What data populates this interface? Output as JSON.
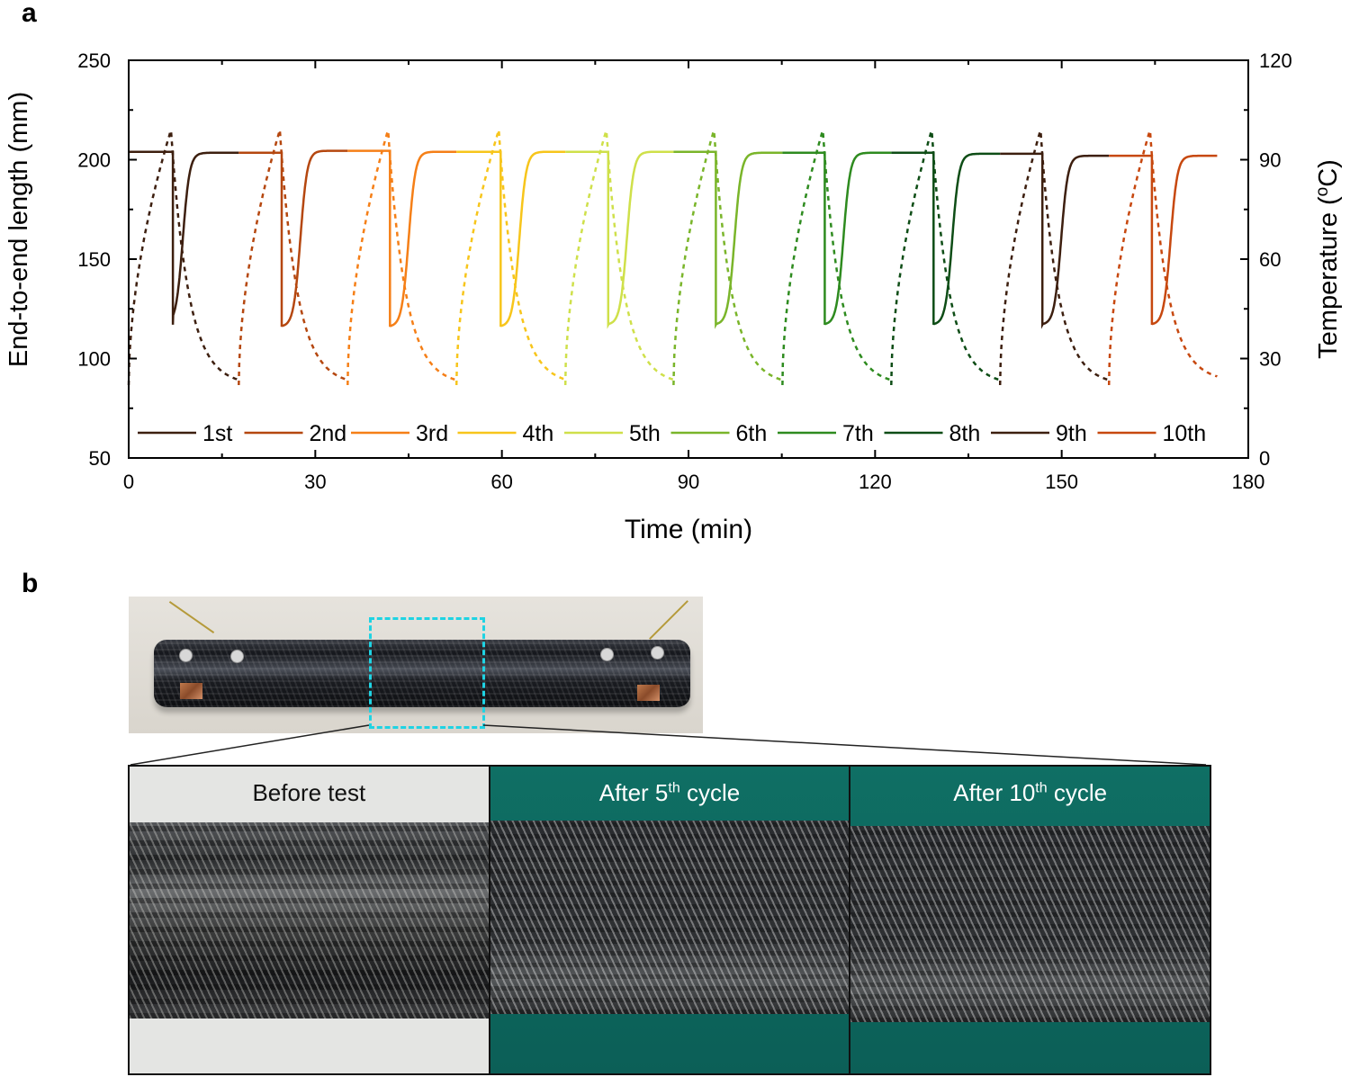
{
  "panel_a_letter": "a",
  "panel_b_letter": "b",
  "chart_data": {
    "type": "line",
    "xlabel": "Time (min)",
    "ylabel": "End-to-end length (mm)",
    "y2label": {
      "prefix": "Temperature (",
      "sup": "o",
      "suffix": "C)"
    },
    "xlim": [
      0,
      180
    ],
    "ylim": [
      50,
      250
    ],
    "y2lim": [
      0,
      120
    ],
    "xticks": [
      "0",
      "30",
      "60",
      "90",
      "120",
      "150",
      "180"
    ],
    "yticks": [
      "50",
      "100",
      "150",
      "200",
      "250"
    ],
    "y2ticks": [
      "0",
      "30",
      "60",
      "90",
      "120"
    ],
    "legend_position": "bottom",
    "start_temperature": 22,
    "cycles": [
      {
        "label": "1st",
        "color": "#3d1f0f",
        "drop_time": 7.1,
        "length_high": 204,
        "length_low": 117,
        "length_recovered": 203.5,
        "recovery_mid": 1.6,
        "temp_peak": 99,
        "temp_min": 22,
        "temp_min_time": 17.7
      },
      {
        "label": "2nd",
        "color": "#b5470f",
        "drop_time": 24.6,
        "length_high": 204,
        "length_low": 116,
        "length_recovered": 204.5,
        "recovery_mid": 3.0,
        "temp_peak": 99,
        "temp_min": 22,
        "temp_min_time": 35.2
      },
      {
        "label": "3rd",
        "color": "#f57f17",
        "drop_time": 42.0,
        "length_high": 204.5,
        "length_low": 116,
        "length_recovered": 204,
        "recovery_mid": 3.0,
        "temp_peak": 99,
        "temp_min": 22,
        "temp_min_time": 52.7
      },
      {
        "label": "4th",
        "color": "#f7c51b",
        "drop_time": 59.8,
        "length_high": 204,
        "length_low": 116,
        "length_recovered": 204,
        "recovery_mid": 3.0,
        "temp_peak": 99,
        "temp_min": 22,
        "temp_min_time": 70.2
      },
      {
        "label": "5th",
        "color": "#cfe04a",
        "drop_time": 77.1,
        "length_high": 204,
        "length_low": 117,
        "length_recovered": 204,
        "recovery_mid": 3.0,
        "temp_peak": 99,
        "temp_min": 22,
        "temp_min_time": 87.6
      },
      {
        "label": "6th",
        "color": "#7ab52a",
        "drop_time": 94.4,
        "length_high": 204,
        "length_low": 117,
        "length_recovered": 203.5,
        "recovery_mid": 3.0,
        "temp_peak": 99,
        "temp_min": 22,
        "temp_min_time": 105.1
      },
      {
        "label": "7th",
        "color": "#2e8b1f",
        "drop_time": 111.9,
        "length_high": 203.5,
        "length_low": 117,
        "length_recovered": 203.5,
        "recovery_mid": 3.0,
        "temp_peak": 99,
        "temp_min": 22,
        "temp_min_time": 122.6
      },
      {
        "label": "8th",
        "color": "#0e4d16",
        "drop_time": 129.4,
        "length_high": 203.5,
        "length_low": 117,
        "length_recovered": 203,
        "recovery_mid": 3.0,
        "temp_peak": 99,
        "temp_min": 22,
        "temp_min_time": 140.1
      },
      {
        "label": "9th",
        "color": "#3d1f0f",
        "drop_time": 146.9,
        "length_high": 203,
        "length_low": 117,
        "length_recovered": 202,
        "recovery_mid": 3.0,
        "temp_peak": 99,
        "temp_min": 22,
        "temp_min_time": 157.6
      },
      {
        "label": "10th",
        "color": "#c7480f",
        "drop_time": 164.5,
        "length_high": 202,
        "length_low": 117,
        "length_recovered": 202,
        "recovery_mid": 3.0,
        "temp_peak": 99,
        "temp_min": 23,
        "temp_min_time": 175
      }
    ]
  },
  "photos": {
    "zoom_box_color": "#1fd3e3",
    "panels": [
      {
        "prefix": "Before test",
        "sup": "",
        "suffix": ""
      },
      {
        "prefix": "After 5",
        "sup": "th",
        "suffix": " cycle"
      },
      {
        "prefix": "After 10",
        "sup": "th",
        "suffix": " cycle"
      }
    ]
  }
}
